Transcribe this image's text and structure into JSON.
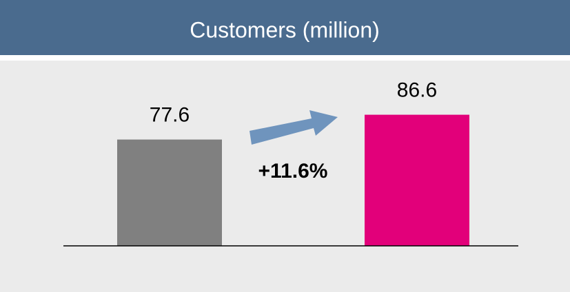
{
  "chart_data": {
    "type": "bar",
    "title": "Customers (million)",
    "categories": [
      null,
      null
    ],
    "values": [
      77.6,
      86.6
    ],
    "colors": [
      "#808080",
      "#e2007a"
    ],
    "annotation": "+11.6%",
    "ylim": [
      39,
      100
    ],
    "grid": false
  }
}
